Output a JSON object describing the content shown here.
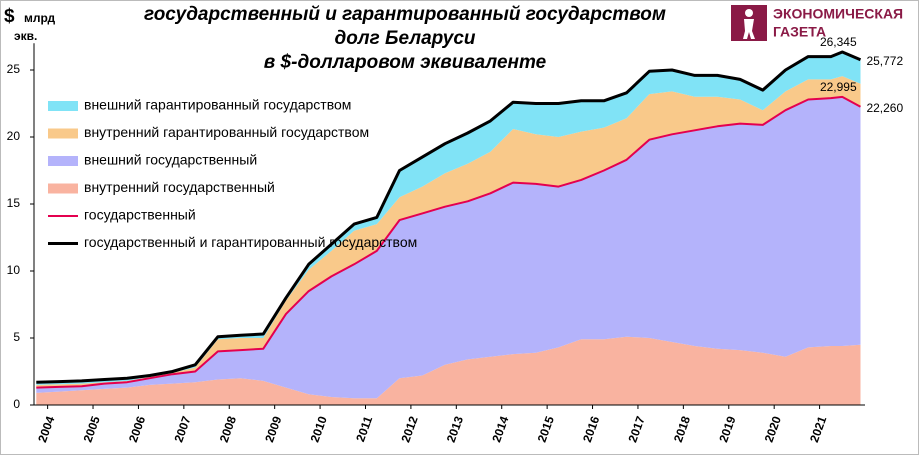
{
  "chart_data": {
    "type": "area",
    "title": [
      "государственный и гарантированный государством",
      "долг Беларуси",
      "в $-долларовом эквиваленте"
    ],
    "y_label": [
      "$",
      "млрд",
      "экв."
    ],
    "x": [
      2003.75,
      2004.25,
      2004.75,
      2005.25,
      2005.75,
      2006.25,
      2006.75,
      2007.25,
      2007.75,
      2008.25,
      2008.75,
      2009.25,
      2009.75,
      2010.25,
      2010.75,
      2011.25,
      2011.75,
      2012.25,
      2012.75,
      2013.25,
      2013.75,
      2014.25,
      2014.75,
      2015.25,
      2015.75,
      2016.25,
      2016.75,
      2017.25,
      2017.75,
      2018.25,
      2018.75,
      2019.25,
      2019.75,
      2020.25,
      2020.75,
      2021.25,
      2021.5,
      2021.9
    ],
    "xlim": [
      2003.7,
      2022
    ],
    "xticks": [
      2004,
      2005,
      2006,
      2007,
      2008,
      2009,
      2010,
      2011,
      2012,
      2013,
      2014,
      2015,
      2016,
      2017,
      2018,
      2019,
      2020,
      2021
    ],
    "ylim": [
      0,
      27
    ],
    "yticks": [
      0,
      5,
      10,
      15,
      20,
      25
    ],
    "grid": false,
    "legend": "upper left",
    "series": [
      {
        "name": "внешний гарантированный государством",
        "type": "area",
        "color": "#80e3f6",
        "values": [
          0.2,
          0.2,
          0.2,
          0.2,
          0.2,
          0.1,
          0.1,
          0.2,
          0.2,
          0.2,
          0.3,
          0.2,
          0.4,
          0.5,
          0.5,
          0.5,
          2.0,
          2.2,
          2.2,
          2.3,
          2.3,
          2.0,
          2.3,
          2.5,
          2.3,
          2.0,
          1.9,
          1.7,
          1.6,
          1.6,
          1.6,
          1.5,
          1.5,
          1.6,
          1.7,
          1.7,
          1.8,
          1.8
        ]
      },
      {
        "name": "внутренний гарантированный государством",
        "type": "area",
        "color": "#f9c98a",
        "values": [
          0.2,
          0.2,
          0.2,
          0.1,
          0.1,
          0.1,
          0.1,
          0.3,
          0.9,
          0.9,
          0.8,
          1.0,
          1.6,
          1.9,
          2.5,
          2.0,
          1.7,
          2.0,
          2.5,
          2.8,
          3.1,
          4.0,
          3.7,
          3.7,
          3.6,
          3.2,
          3.1,
          3.4,
          3.2,
          2.5,
          2.2,
          1.8,
          1.1,
          1.4,
          1.5,
          1.4,
          1.55,
          1.712
        ]
      },
      {
        "name": "внешний государственный",
        "type": "area",
        "color": "#b4b3fb",
        "values": [
          0.4,
          0.35,
          0.3,
          0.4,
          0.4,
          0.5,
          0.7,
          0.8,
          2.1,
          2.1,
          2.4,
          5.5,
          7.7,
          9.0,
          10.0,
          11.0,
          11.8,
          12.1,
          11.8,
          11.8,
          12.2,
          12.8,
          12.6,
          12.0,
          11.9,
          12.6,
          13.2,
          14.8,
          15.5,
          16.1,
          16.6,
          16.9,
          17.0,
          18.4,
          18.5,
          18.5,
          18.595,
          17.76
        ]
      },
      {
        "name": "внутренний государственный",
        "type": "area",
        "color": "#f9b3a0",
        "values": [
          0.9,
          1.0,
          1.1,
          1.2,
          1.3,
          1.5,
          1.6,
          1.7,
          1.9,
          2.0,
          1.8,
          1.3,
          0.8,
          0.6,
          0.5,
          0.5,
          2.0,
          2.2,
          3.0,
          3.4,
          3.6,
          3.8,
          3.9,
          4.3,
          4.9,
          4.9,
          5.1,
          5.0,
          4.7,
          4.4,
          4.2,
          4.1,
          3.9,
          3.6,
          4.3,
          4.4,
          4.4,
          4.5
        ]
      },
      {
        "name": "государственный",
        "type": "line",
        "color": "#e4004f",
        "values": [
          1.3,
          1.35,
          1.4,
          1.6,
          1.7,
          2.0,
          2.3,
          2.5,
          4.0,
          4.1,
          4.2,
          6.8,
          8.5,
          9.6,
          10.5,
          11.5,
          13.8,
          14.3,
          14.8,
          15.2,
          15.8,
          16.6,
          16.5,
          16.3,
          16.8,
          17.5,
          18.3,
          19.8,
          20.2,
          20.5,
          20.8,
          21.0,
          20.9,
          22.0,
          22.8,
          22.9,
          22.995,
          22.26
        ],
        "value_labels": [
          null,
          null,
          null,
          null,
          null,
          null,
          null,
          null,
          null,
          null,
          null,
          null,
          null,
          null,
          null,
          null,
          null,
          null,
          null,
          null,
          null,
          null,
          null,
          null,
          null,
          null,
          null,
          null,
          null,
          null,
          null,
          null,
          null,
          null,
          null,
          null,
          "22,995",
          "22,260"
        ]
      },
      {
        "name": "государственный и гарантированный государством",
        "type": "line",
        "color": "#000000",
        "values": [
          1.7,
          1.75,
          1.8,
          1.9,
          2.0,
          2.2,
          2.5,
          3.0,
          5.1,
          5.2,
          5.3,
          8.0,
          10.5,
          12.0,
          13.5,
          14.0,
          17.5,
          18.5,
          19.5,
          20.3,
          21.2,
          22.6,
          22.5,
          22.5,
          22.7,
          22.7,
          23.3,
          24.9,
          25.0,
          24.6,
          24.6,
          24.3,
          23.5,
          25.0,
          26.0,
          26.0,
          26.345,
          25.772
        ],
        "value_labels": [
          null,
          null,
          null,
          null,
          null,
          null,
          null,
          null,
          null,
          null,
          null,
          null,
          null,
          null,
          null,
          null,
          null,
          null,
          null,
          null,
          null,
          null,
          null,
          null,
          null,
          null,
          null,
          null,
          null,
          null,
          null,
          null,
          null,
          null,
          null,
          null,
          "26,345",
          "25,772"
        ]
      }
    ]
  },
  "logo": [
    "ЭКОНОМИЧЕСКАЯ",
    "ГАЗЕТА"
  ]
}
